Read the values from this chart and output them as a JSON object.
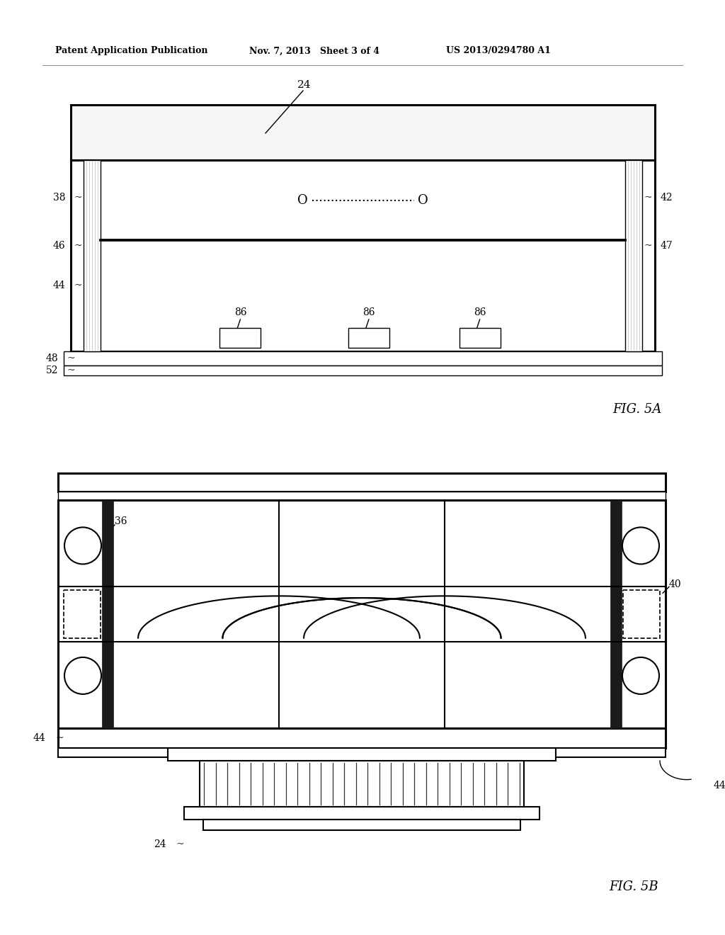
{
  "header_left": "Patent Application Publication",
  "header_mid": "Nov. 7, 2013   Sheet 3 of 4",
  "header_right": "US 2013/0294780 A1",
  "fig5a_label": "FIG. 5A",
  "fig5b_label": "FIG. 5B",
  "bg_color": "#ffffff",
  "line_color": "#000000"
}
